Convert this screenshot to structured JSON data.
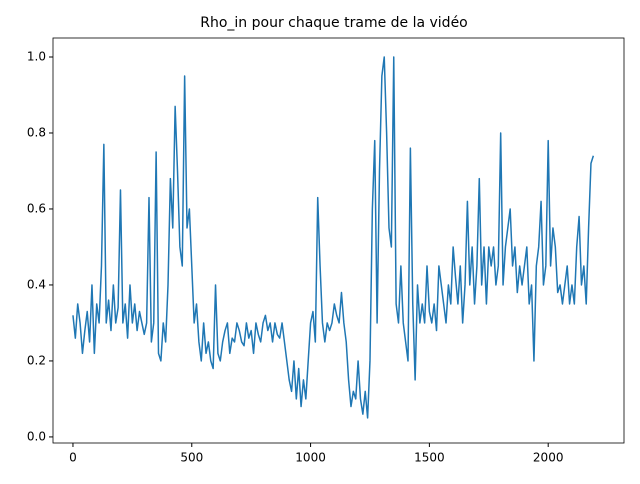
{
  "chart_data": {
    "type": "line",
    "title": "Rho_in pour chaque trame de la vidéo",
    "x": [
      0,
      10,
      20,
      30,
      40,
      50,
      60,
      70,
      80,
      90,
      100,
      110,
      120,
      130,
      140,
      150,
      160,
      170,
      180,
      190,
      200,
      210,
      220,
      230,
      240,
      250,
      260,
      270,
      280,
      290,
      300,
      310,
      320,
      330,
      340,
      350,
      360,
      370,
      380,
      390,
      400,
      410,
      420,
      430,
      440,
      450,
      460,
      470,
      480,
      490,
      500,
      510,
      520,
      530,
      540,
      550,
      560,
      570,
      580,
      590,
      600,
      610,
      620,
      630,
      640,
      650,
      660,
      670,
      680,
      690,
      700,
      710,
      720,
      730,
      740,
      750,
      760,
      770,
      780,
      790,
      800,
      810,
      820,
      830,
      840,
      850,
      860,
      870,
      880,
      890,
      900,
      910,
      920,
      930,
      940,
      950,
      960,
      970,
      980,
      990,
      1000,
      1010,
      1020,
      1030,
      1040,
      1050,
      1060,
      1070,
      1080,
      1090,
      1100,
      1110,
      1120,
      1130,
      1140,
      1150,
      1160,
      1170,
      1180,
      1190,
      1200,
      1210,
      1220,
      1230,
      1240,
      1250,
      1260,
      1270,
      1280,
      1290,
      1300,
      1310,
      1320,
      1330,
      1340,
      1350,
      1360,
      1370,
      1380,
      1390,
      1400,
      1410,
      1420,
      1430,
      1440,
      1450,
      1460,
      1470,
      1480,
      1490,
      1500,
      1510,
      1520,
      1530,
      1540,
      1550,
      1560,
      1570,
      1580,
      1590,
      1600,
      1610,
      1620,
      1630,
      1640,
      1650,
      1660,
      1670,
      1680,
      1690,
      1700,
      1710,
      1720,
      1730,
      1740,
      1750,
      1760,
      1770,
      1780,
      1790,
      1800,
      1810,
      1820,
      1830,
      1840,
      1850,
      1860,
      1870,
      1880,
      1890,
      1900,
      1910,
      1920,
      1930,
      1940,
      1950,
      1960,
      1970,
      1980,
      1990,
      2000,
      2010,
      2020,
      2030,
      2040,
      2050,
      2060,
      2070,
      2080,
      2090,
      2100,
      2110,
      2120,
      2130,
      2140,
      2150,
      2160,
      2170,
      2180,
      2190
    ],
    "series": [
      {
        "color": "#1f77b4",
        "values": [
          0.32,
          0.26,
          0.35,
          0.3,
          0.22,
          0.28,
          0.33,
          0.25,
          0.4,
          0.22,
          0.35,
          0.3,
          0.45,
          0.77,
          0.3,
          0.36,
          0.28,
          0.4,
          0.3,
          0.34,
          0.65,
          0.3,
          0.35,
          0.26,
          0.4,
          0.3,
          0.35,
          0.28,
          0.33,
          0.3,
          0.27,
          0.3,
          0.63,
          0.25,
          0.3,
          0.75,
          0.22,
          0.2,
          0.3,
          0.25,
          0.4,
          0.68,
          0.55,
          0.87,
          0.7,
          0.5,
          0.45,
          0.95,
          0.55,
          0.6,
          0.45,
          0.3,
          0.35,
          0.25,
          0.2,
          0.3,
          0.22,
          0.25,
          0.2,
          0.18,
          0.4,
          0.22,
          0.2,
          0.25,
          0.28,
          0.3,
          0.22,
          0.26,
          0.25,
          0.3,
          0.28,
          0.25,
          0.24,
          0.3,
          0.26,
          0.28,
          0.22,
          0.3,
          0.27,
          0.25,
          0.3,
          0.32,
          0.28,
          0.3,
          0.25,
          0.3,
          0.27,
          0.26,
          0.3,
          0.25,
          0.2,
          0.15,
          0.12,
          0.2,
          0.1,
          0.18,
          0.08,
          0.15,
          0.1,
          0.2,
          0.3,
          0.33,
          0.25,
          0.63,
          0.45,
          0.3,
          0.25,
          0.3,
          0.28,
          0.3,
          0.35,
          0.32,
          0.3,
          0.38,
          0.3,
          0.25,
          0.15,
          0.08,
          0.12,
          0.1,
          0.2,
          0.1,
          0.06,
          0.12,
          0.05,
          0.2,
          0.6,
          0.78,
          0.3,
          0.7,
          0.95,
          1.0,
          0.8,
          0.55,
          0.5,
          1.0,
          0.35,
          0.3,
          0.45,
          0.3,
          0.25,
          0.2,
          0.76,
          0.35,
          0.15,
          0.4,
          0.3,
          0.35,
          0.3,
          0.45,
          0.33,
          0.3,
          0.35,
          0.28,
          0.45,
          0.4,
          0.35,
          0.3,
          0.4,
          0.35,
          0.5,
          0.42,
          0.35,
          0.45,
          0.3,
          0.4,
          0.62,
          0.4,
          0.5,
          0.35,
          0.45,
          0.68,
          0.4,
          0.5,
          0.35,
          0.5,
          0.45,
          0.5,
          0.4,
          0.45,
          0.8,
          0.4,
          0.5,
          0.55,
          0.6,
          0.45,
          0.5,
          0.38,
          0.45,
          0.4,
          0.45,
          0.5,
          0.35,
          0.4,
          0.2,
          0.45,
          0.5,
          0.62,
          0.4,
          0.45,
          0.78,
          0.45,
          0.55,
          0.5,
          0.38,
          0.4,
          0.35,
          0.4,
          0.45,
          0.35,
          0.4,
          0.35,
          0.5,
          0.58,
          0.4,
          0.45,
          0.35,
          0.55,
          0.72,
          0.74
        ]
      }
    ],
    "xlim": [
      -84,
      2319
    ],
    "xticks": [
      0,
      500,
      1000,
      1500,
      2000
    ],
    "ylim": [
      -0.016,
      1.05
    ],
    "yticks": [
      0.0,
      0.2,
      0.4,
      0.6,
      0.8,
      1.0
    ],
    "grid": false
  }
}
